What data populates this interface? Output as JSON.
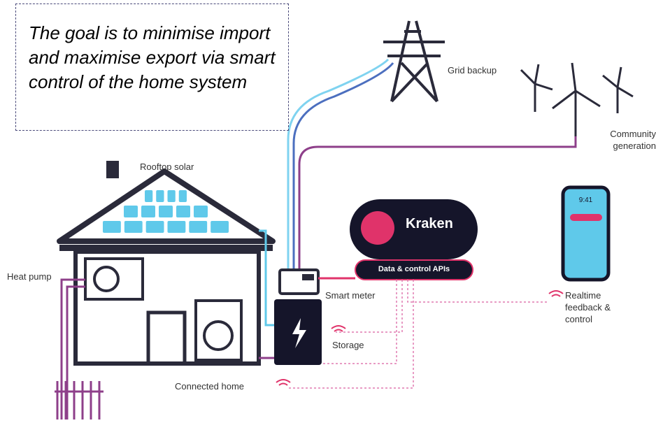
{
  "note": "The goal is to minimise import and maximise export via smart control of the home system",
  "labels": {
    "grid_backup": "Grid backup",
    "community_generation": "Community generation",
    "rooftop_solar": "Rooftop solar",
    "heat_pump": "Heat pump",
    "kraken": "Kraken",
    "apis": "Data & control APIs",
    "smart_meter": "Smart meter",
    "realtime": "Realtime feedback & control",
    "storage": "Storage",
    "connected_home": "Connected home",
    "phone_time": "9:41"
  }
}
